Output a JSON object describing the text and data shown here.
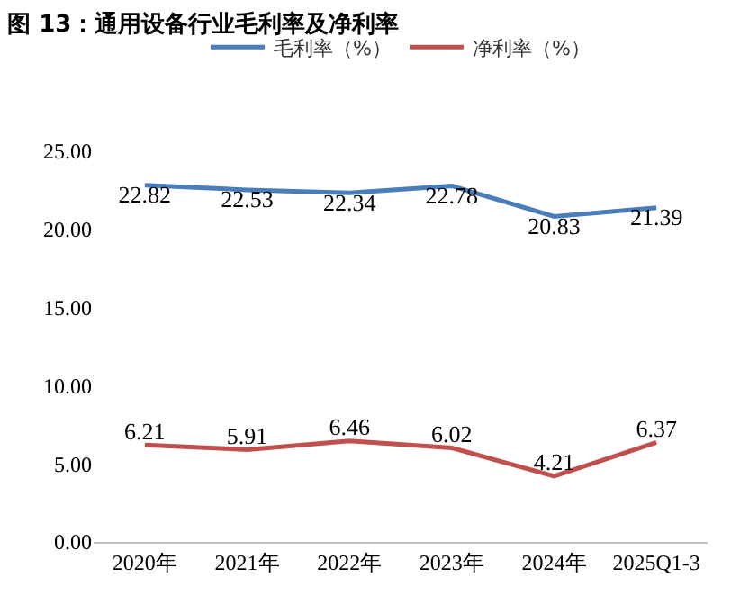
{
  "chart_data": {
    "type": "line",
    "title": "图 13：通用设备行业毛利率及净利率",
    "categories": [
      "2020年",
      "2021年",
      "2022年",
      "2023年",
      "2024年",
      "2025Q1-3"
    ],
    "series": [
      {
        "name": "毛利率（%）",
        "color": "#4a7ebb",
        "values": [
          22.82,
          22.53,
          22.34,
          22.78,
          20.83,
          21.39
        ]
      },
      {
        "name": "净利率（%）",
        "color": "#c0504d",
        "values": [
          6.21,
          5.91,
          6.46,
          6.02,
          4.21,
          6.37
        ]
      }
    ],
    "ylim": [
      0,
      25
    ],
    "yticks": [
      {
        "value": 0,
        "label": "0.00"
      },
      {
        "value": 5,
        "label": "5.00"
      },
      {
        "value": 10,
        "label": "10.00"
      },
      {
        "value": 15,
        "label": "15.00"
      },
      {
        "value": 20,
        "label": "20.00"
      },
      {
        "value": 25,
        "label": "25.00"
      }
    ],
    "data_labels": true,
    "legend": "top",
    "marker": "none",
    "line_style": "solid"
  }
}
